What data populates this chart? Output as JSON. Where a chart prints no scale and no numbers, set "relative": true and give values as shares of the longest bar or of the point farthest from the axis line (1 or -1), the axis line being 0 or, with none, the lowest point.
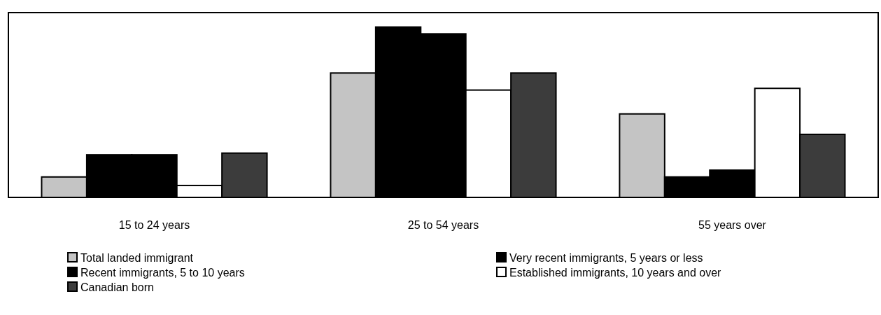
{
  "chart_data": {
    "type": "bar",
    "relative": true,
    "categories": [
      "15 to 24 years",
      "25 to 54 years",
      "55 years over"
    ],
    "series": [
      {
        "name": "Total landed immigrant",
        "color": "#c4c4c4",
        "values": [
          0.12,
          0.73,
          0.49
        ]
      },
      {
        "name": "Very recent immigrants, 5 years or less",
        "color": "#000000",
        "values": [
          0.25,
          1,
          0.12
        ]
      },
      {
        "name": "Recent immigrants, 5 to 10 years",
        "color": "#000000",
        "values": [
          0.25,
          0.96,
          0.16
        ]
      },
      {
        "name": "Established immigrants, 10 years and over",
        "color": "#ffffff",
        "values": [
          0.07,
          0.63,
          0.64
        ]
      },
      {
        "name": "Canadian born",
        "color": "#3c3c3c",
        "values": [
          0.26,
          0.73,
          0.37
        ]
      }
    ],
    "legend": "bottom"
  }
}
